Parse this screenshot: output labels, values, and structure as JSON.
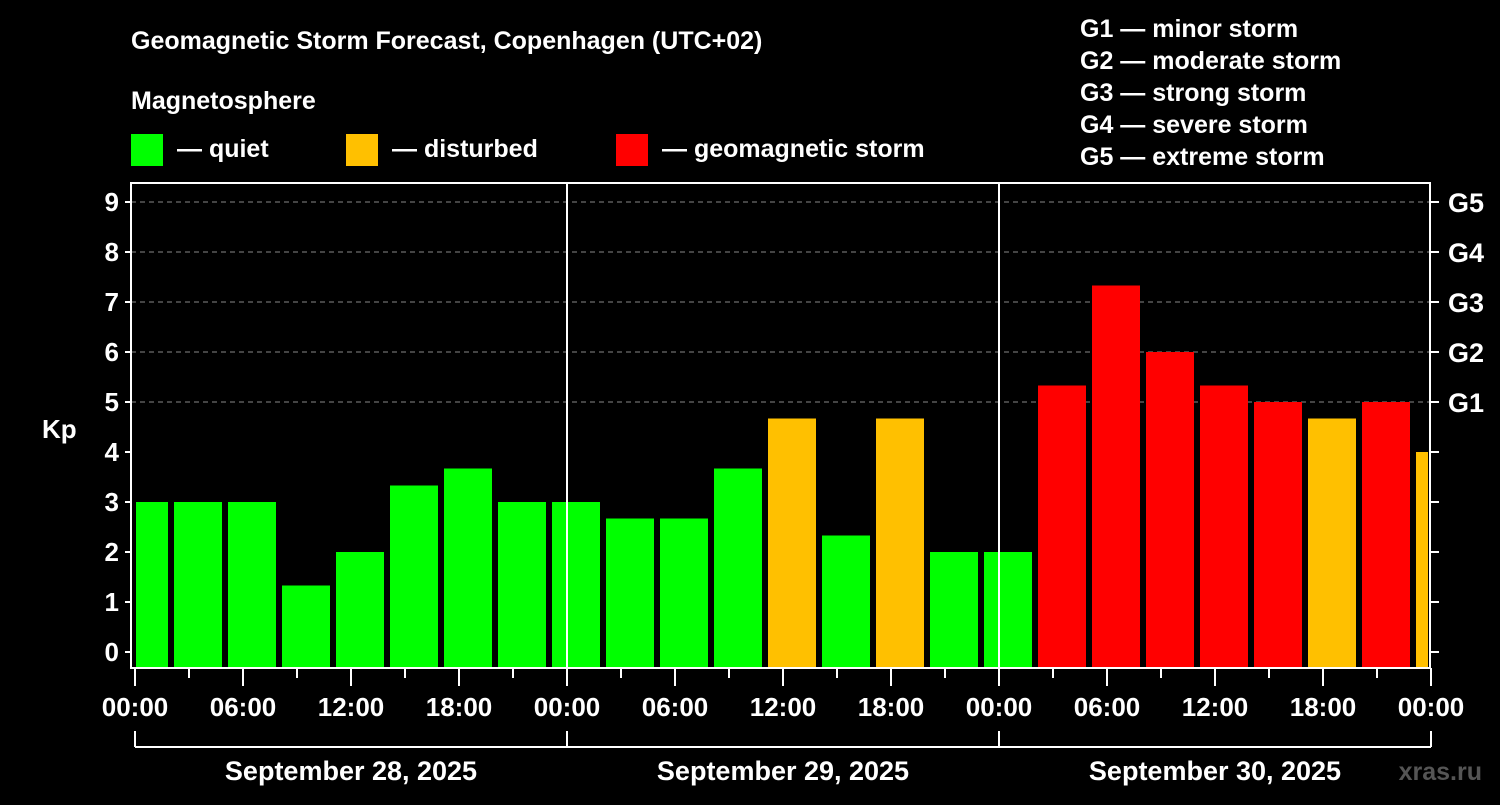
{
  "chart_data": {
    "type": "bar",
    "title": "Geomagnetic Storm Forecast, Copenhagen (UTC+02)",
    "ylabel": "Kp",
    "ylim": [
      0,
      9
    ],
    "yticks": [
      "0",
      "1",
      "2",
      "3",
      "4",
      "5",
      "6",
      "7",
      "8",
      "9"
    ],
    "right_ticks": [
      {
        "kp": 5,
        "label": "G1"
      },
      {
        "kp": 6,
        "label": "G2"
      },
      {
        "kp": 7,
        "label": "G3"
      },
      {
        "kp": 8,
        "label": "G4"
      },
      {
        "kp": 9,
        "label": "G5"
      }
    ],
    "xticks": [
      "00:00",
      "06:00",
      "12:00",
      "18:00",
      "00:00",
      "06:00",
      "12:00",
      "18:00",
      "00:00",
      "06:00",
      "12:00",
      "18:00",
      "00:00"
    ],
    "days": [
      "September 28, 2025",
      "September 29, 2025",
      "September 30, 2025"
    ],
    "bar_start_hours": [
      0.5,
      3.5,
      6.5,
      9.5,
      12.5,
      15.5,
      18.5,
      21.5,
      24.5,
      27.5,
      30.5,
      33.5,
      36.5,
      39.5,
      42.5,
      45.5,
      48.5,
      51.5,
      54.5,
      57.5,
      60.5,
      63.5,
      66.5,
      69.5,
      72.5
    ],
    "values": [
      3,
      3,
      3,
      1.33,
      2,
      3.33,
      3.67,
      3,
      3,
      2.67,
      2.67,
      3.67,
      4.67,
      2.33,
      4.67,
      2,
      2,
      5.33,
      7.33,
      6,
      5.33,
      5,
      4.67,
      5,
      4
    ],
    "legend_title": "Magnetosphere",
    "legend": [
      {
        "label": "— quiet",
        "color": "#00ff00"
      },
      {
        "label": "— disturbed",
        "color": "#ffc000"
      },
      {
        "label": "— geomagnetic storm",
        "color": "#ff0000"
      }
    ],
    "scale": [
      "G1 — minor storm",
      "G2 — moderate storm",
      "G3 — strong storm",
      "G4 — severe storm",
      "G5 — extreme storm"
    ],
    "grid": true
  },
  "watermark": "xras.ru"
}
